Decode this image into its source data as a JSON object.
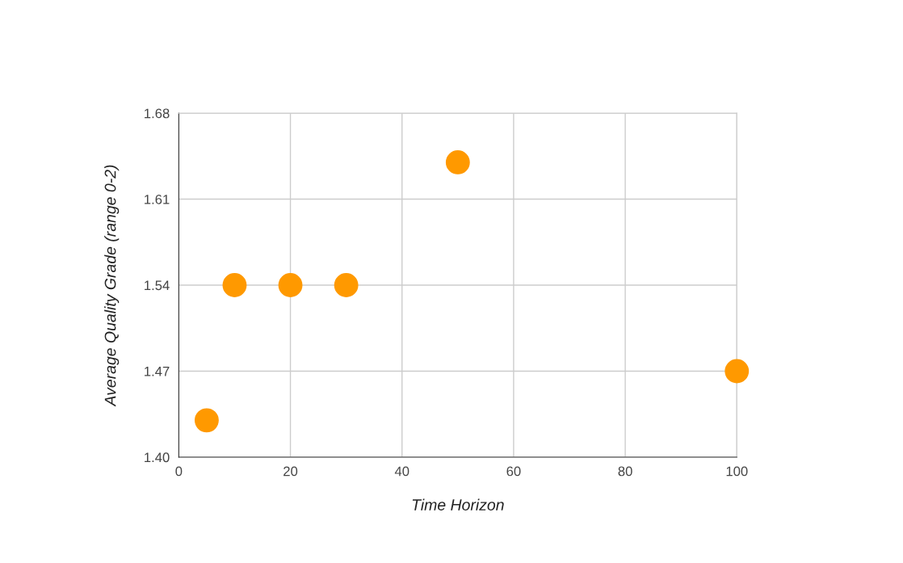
{
  "chart_data": {
    "type": "scatter",
    "xlabel": "Time Horizon",
    "ylabel": "Average Quality Grade (range 0-2)",
    "x": [
      5,
      10,
      20,
      30,
      50,
      100
    ],
    "series": [
      {
        "color": "#ff9900",
        "values": [
          1.43,
          1.54,
          1.54,
          1.54,
          1.64,
          1.47
        ]
      }
    ],
    "xlim": [
      0,
      100
    ],
    "xticks": [
      0,
      20,
      40,
      60,
      80,
      100
    ],
    "ylim": [
      1.4,
      1.68
    ],
    "yticks": [
      {
        "value": 1.4,
        "label": "1.40"
      },
      {
        "value": 1.47,
        "label": "1.47"
      },
      {
        "value": 1.54,
        "label": "1.54"
      },
      {
        "value": 1.61,
        "label": "1.61"
      },
      {
        "value": 1.68,
        "label": "1.68"
      }
    ],
    "grid": true,
    "marker": "circle",
    "legend": false
  }
}
